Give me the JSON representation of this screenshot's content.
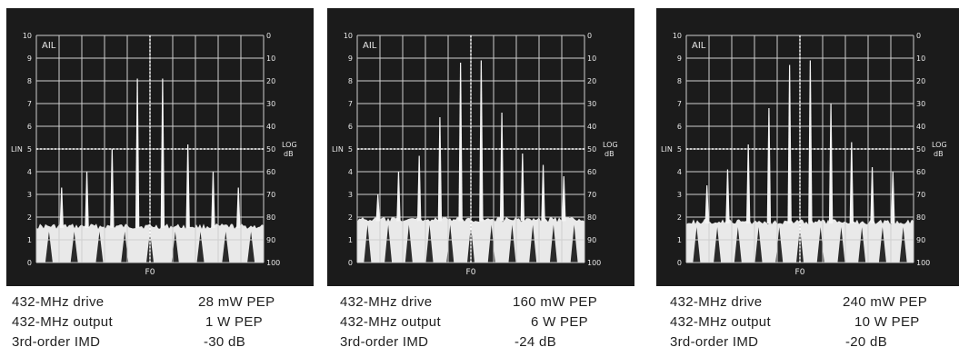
{
  "scope": {
    "tag": "AIL",
    "lin_label": "LIN",
    "log_label": "LOG",
    "db_label": "dB",
    "center_label": "F0",
    "left_scale": [
      "0",
      "1",
      "2",
      "3",
      "4",
      "5",
      "6",
      "7",
      "8",
      "9",
      "10"
    ],
    "right_scale": [
      "100",
      "90",
      "80",
      "70",
      "60",
      "50",
      "40",
      "30",
      "20",
      "10",
      "0"
    ]
  },
  "panels": [
    {
      "drive_label": "432-MHz drive",
      "drive_value": "28 mW PEP",
      "output_label": "432-MHz output",
      "output_value": "1 W PEP",
      "imd_label": "3rd-order IMD",
      "imd_value": "-30 dB",
      "peaks": [
        3.3,
        4.0,
        5.0,
        8.1,
        8.1,
        5.2,
        4.0,
        3.3
      ],
      "noise": 1.6
    },
    {
      "drive_label": "432-MHz drive",
      "drive_value": "160 mW PEP",
      "output_label": "432-MHz output",
      "output_value": "6 W PEP",
      "imd_label": "3rd-order IMD",
      "imd_value": "-24 dB",
      "peaks": [
        3.0,
        4.0,
        4.7,
        6.4,
        8.8,
        8.9,
        6.6,
        4.8,
        4.3,
        3.8
      ],
      "noise": 1.9
    },
    {
      "drive_label": "432-MHz drive",
      "drive_value": "240 mW PEP",
      "output_label": "432-MHz output",
      "output_value": "10 W PEP",
      "imd_label": "3rd-order IMD",
      "imd_value": "-20 dB",
      "peaks": [
        3.4,
        4.1,
        5.2,
        6.8,
        8.7,
        8.9,
        7.0,
        5.3,
        4.2,
        4.0
      ],
      "noise": 1.8
    }
  ]
}
